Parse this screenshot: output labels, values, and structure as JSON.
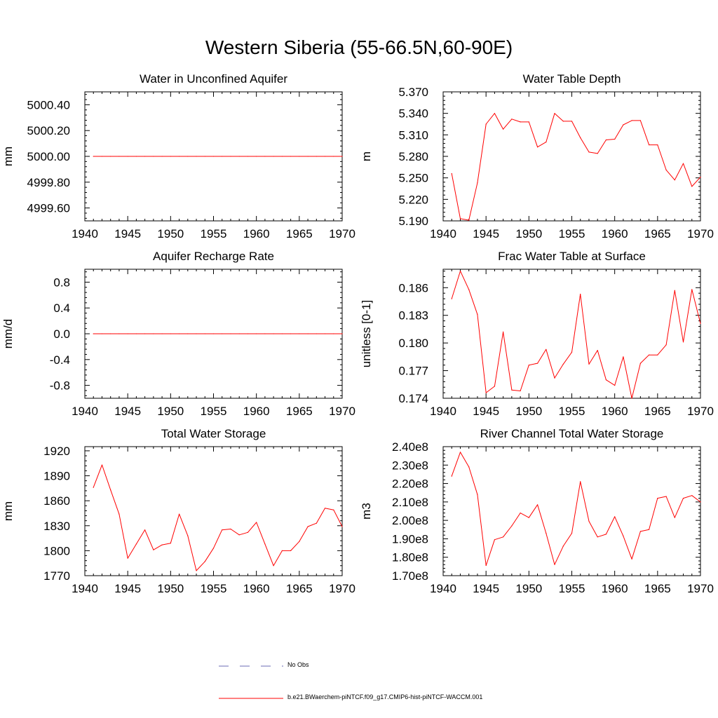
{
  "title": "Western Siberia (55-66.5N,60-90E)",
  "colors": {
    "model": "#ff0000",
    "obs": "#6b6bb5"
  },
  "legend": {
    "obs_label": "No Obs",
    "model_label": "b.e21.BWaerchem-piNTCF.f09_g17.CMIP6-hist-piNTCF-WACCM.001"
  },
  "chart_data": [
    {
      "type": "line",
      "title": "Water in Unconfined Aquifer",
      "ylabel": "mm",
      "xlim": [
        1940,
        1970
      ],
      "ylim": [
        4999.5,
        5000.5
      ],
      "xticks": [
        1940,
        1945,
        1950,
        1955,
        1960,
        1965,
        1970
      ],
      "yticks": [
        4999.6,
        4999.8,
        5000.0,
        5000.2,
        5000.4
      ],
      "yticklabels": [
        "4999.60",
        "4999.80",
        "5000.00",
        "5000.20",
        "5000.40"
      ],
      "x": [
        1941,
        1942,
        1943,
        1944,
        1945,
        1946,
        1947,
        1948,
        1949,
        1950,
        1951,
        1952,
        1953,
        1954,
        1955,
        1956,
        1957,
        1958,
        1959,
        1960,
        1961,
        1962,
        1963,
        1964,
        1965,
        1966,
        1967,
        1968,
        1969,
        1970
      ],
      "series": [
        {
          "values": [
            5000,
            5000,
            5000,
            5000,
            5000,
            5000,
            5000,
            5000,
            5000,
            5000,
            5000,
            5000,
            5000,
            5000,
            5000,
            5000,
            5000,
            5000,
            5000,
            5000,
            5000,
            5000,
            5000,
            5000,
            5000,
            5000,
            5000,
            5000,
            5000,
            5000
          ]
        }
      ]
    },
    {
      "type": "line",
      "title": "Water Table Depth",
      "ylabel": "m",
      "xlim": [
        1940,
        1970
      ],
      "ylim": [
        5.19,
        5.37
      ],
      "xticks": [
        1940,
        1945,
        1950,
        1955,
        1960,
        1965,
        1970
      ],
      "yticks": [
        5.19,
        5.22,
        5.25,
        5.28,
        5.31,
        5.34,
        5.37
      ],
      "yticklabels": [
        "5.190",
        "5.220",
        "5.250",
        "5.280",
        "5.310",
        "5.340",
        "5.370"
      ],
      "x": [
        1941,
        1942,
        1943,
        1944,
        1945,
        1946,
        1947,
        1948,
        1949,
        1950,
        1951,
        1952,
        1953,
        1954,
        1955,
        1956,
        1957,
        1958,
        1959,
        1960,
        1961,
        1962,
        1963,
        1964,
        1965,
        1966,
        1967,
        1968,
        1969,
        1970
      ],
      "series": [
        {
          "values": [
            5.256,
            5.193,
            5.191,
            5.243,
            5.325,
            5.34,
            5.318,
            5.332,
            5.328,
            5.328,
            5.293,
            5.3,
            5.34,
            5.329,
            5.329,
            5.306,
            5.286,
            5.284,
            5.303,
            5.304,
            5.324,
            5.33,
            5.33,
            5.296,
            5.296,
            5.261,
            5.247,
            5.27,
            5.238,
            5.251
          ]
        }
      ]
    },
    {
      "type": "line",
      "title": "Aquifer Recharge Rate",
      "ylabel": "mm/d",
      "xlim": [
        1940,
        1970
      ],
      "ylim": [
        -1.0,
        1.0
      ],
      "xticks": [
        1940,
        1945,
        1950,
        1955,
        1960,
        1965,
        1970
      ],
      "yticks": [
        -0.8,
        -0.4,
        0.0,
        0.4,
        0.8
      ],
      "yticklabels": [
        "-0.8",
        "-0.4",
        "0.0",
        "0.4",
        "0.8"
      ],
      "x": [
        1941,
        1942,
        1943,
        1944,
        1945,
        1946,
        1947,
        1948,
        1949,
        1950,
        1951,
        1952,
        1953,
        1954,
        1955,
        1956,
        1957,
        1958,
        1959,
        1960,
        1961,
        1962,
        1963,
        1964,
        1965,
        1966,
        1967,
        1968,
        1969,
        1970
      ],
      "series": [
        {
          "values": [
            0,
            0,
            0,
            0,
            0,
            0,
            0,
            0,
            0,
            0,
            0,
            0,
            0,
            0,
            0,
            0,
            0,
            0,
            0,
            0,
            0,
            0,
            0,
            0,
            0,
            0,
            0,
            0,
            0,
            0
          ]
        }
      ]
    },
    {
      "type": "line",
      "title": "Frac Water Table at Surface",
      "ylabel": "unitless [0-1]",
      "xlim": [
        1940,
        1970
      ],
      "ylim": [
        0.174,
        0.188
      ],
      "xticks": [
        1940,
        1945,
        1950,
        1955,
        1960,
        1965,
        1970
      ],
      "yticks": [
        0.174,
        0.177,
        0.18,
        0.183,
        0.186
      ],
      "yticklabels": [
        "0.174",
        "0.177",
        "0.180",
        "0.183",
        "0.186"
      ],
      "x": [
        1941,
        1942,
        1943,
        1944,
        1945,
        1946,
        1947,
        1948,
        1949,
        1950,
        1951,
        1952,
        1953,
        1954,
        1955,
        1956,
        1957,
        1958,
        1959,
        1960,
        1961,
        1962,
        1963,
        1964,
        1965,
        1966,
        1967,
        1968,
        1969,
        1970
      ],
      "series": [
        {
          "values": [
            0.1848,
            0.1878,
            0.1858,
            0.1831,
            0.1746,
            0.1753,
            0.1812,
            0.1749,
            0.1748,
            0.1776,
            0.1778,
            0.1793,
            0.1762,
            0.1777,
            0.179,
            0.1853,
            0.1777,
            0.1792,
            0.176,
            0.1754,
            0.1785,
            0.174,
            0.1778,
            0.1787,
            0.1787,
            0.1798,
            0.1857,
            0.1801,
            0.1858,
            0.1821
          ]
        }
      ]
    },
    {
      "type": "line",
      "title": "Total Water Storage",
      "ylabel": "mm",
      "xlim": [
        1940,
        1970
      ],
      "ylim": [
        1770,
        1925
      ],
      "xticks": [
        1940,
        1945,
        1950,
        1955,
        1960,
        1965,
        1970
      ],
      "yticks": [
        1770,
        1800,
        1830,
        1860,
        1890,
        1920
      ],
      "yticklabels": [
        "1770",
        "1800",
        "1830",
        "1860",
        "1890",
        "1920"
      ],
      "x": [
        1941,
        1942,
        1943,
        1944,
        1945,
        1946,
        1947,
        1948,
        1949,
        1950,
        1951,
        1952,
        1953,
        1954,
        1955,
        1956,
        1957,
        1958,
        1959,
        1960,
        1961,
        1962,
        1963,
        1964,
        1965,
        1966,
        1967,
        1968,
        1969,
        1970
      ],
      "series": [
        {
          "values": [
            1876,
            1903,
            1873,
            1844,
            1791,
            1808,
            1825,
            1801,
            1807,
            1809,
            1844,
            1818,
            1776,
            1787,
            1803,
            1825,
            1826,
            1819,
            1822,
            1834,
            1808,
            1782,
            1800,
            1800,
            1811,
            1829,
            1833,
            1851,
            1849,
            1829
          ]
        }
      ]
    },
    {
      "type": "line",
      "title": "River Channel Total Water Storage",
      "ylabel": "m3",
      "xlim": [
        1940,
        1970
      ],
      "ylim": [
        170000000,
        240000000
      ],
      "xticks": [
        1940,
        1945,
        1950,
        1955,
        1960,
        1965,
        1970
      ],
      "yticks": [
        170000000,
        180000000,
        190000000,
        200000000,
        210000000,
        220000000,
        230000000,
        240000000
      ],
      "yticklabels": [
        "1.70e8",
        "1.80e8",
        "1.90e8",
        "2.00e8",
        "2.10e8",
        "2.20e8",
        "2.30e8",
        "2.40e8"
      ],
      "x": [
        1941,
        1942,
        1943,
        1944,
        1945,
        1946,
        1947,
        1948,
        1949,
        1950,
        1951,
        1952,
        1953,
        1954,
        1955,
        1956,
        1957,
        1958,
        1959,
        1960,
        1961,
        1962,
        1963,
        1964,
        1965,
        1966,
        1967,
        1968,
        1969,
        1970
      ],
      "series": [
        {
          "values": [
            224000000,
            237000000,
            229000000,
            214000000,
            175500000,
            189500000,
            191000000,
            197000000,
            204000000,
            201500000,
            208500000,
            193000000,
            176000000,
            186000000,
            193000000,
            221000000,
            199500000,
            191000000,
            192500000,
            202000000,
            191500000,
            179000000,
            194000000,
            195000000,
            212000000,
            213000000,
            201500000,
            212000000,
            213500000,
            210000000
          ]
        }
      ]
    }
  ]
}
